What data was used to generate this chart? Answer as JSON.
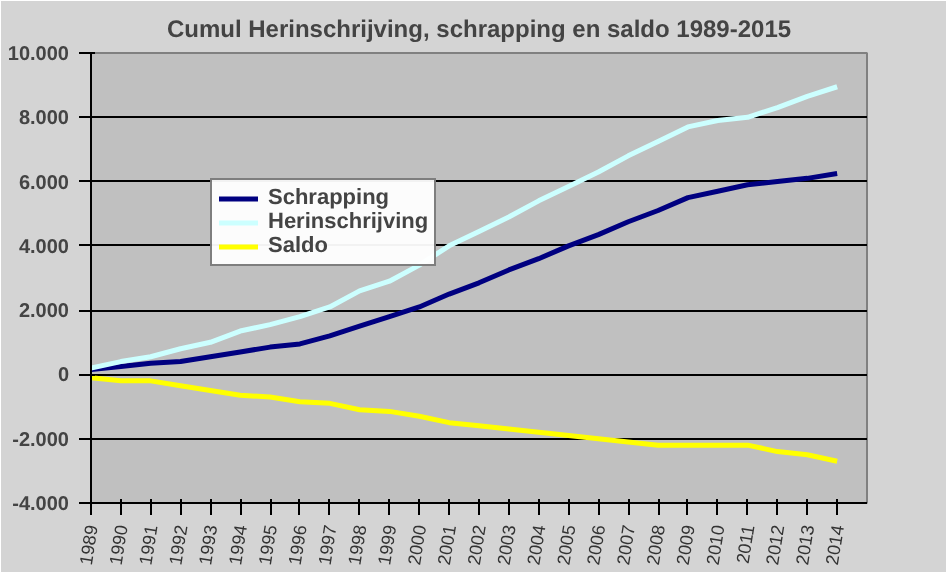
{
  "chart_data": {
    "type": "line",
    "title": "Cumul Herinschrijving, schrapping en saldo 1989-2015",
    "categories": [
      "1989",
      "1990",
      "1991",
      "1992",
      "1993",
      "1994",
      "1995",
      "1996",
      "1997",
      "1998",
      "1999",
      "2000",
      "2001",
      "2002",
      "2003",
      "2004",
      "2005",
      "2006",
      "2007",
      "2008",
      "2009",
      "2010",
      "2011",
      "2012",
      "2013",
      "2014"
    ],
    "series": [
      {
        "name": "Schrapping",
        "color": "#000080",
        "values": [
          150,
          250,
          350,
          400,
          550,
          700,
          850,
          950,
          1200,
          1500,
          1800,
          2100,
          2500,
          2850,
          3250,
          3600,
          4000,
          4350,
          4750,
          5100,
          5500,
          5700,
          5900,
          6000,
          6100,
          6250
        ]
      },
      {
        "name": "Herinschrijving",
        "color": "#ccffff",
        "values": [
          200,
          400,
          550,
          800,
          1000,
          1350,
          1550,
          1800,
          2100,
          2600,
          2900,
          3400,
          4000,
          4450,
          4900,
          5400,
          5850,
          6300,
          6800,
          7250,
          7700,
          7900,
          8000,
          8300,
          8650,
          8950
        ]
      },
      {
        "name": "Saldo",
        "color": "#ffff00",
        "values": [
          -100,
          -200,
          -200,
          -350,
          -500,
          -650,
          -700,
          -850,
          -900,
          -1100,
          -1150,
          -1300,
          -1500,
          -1600,
          -1700,
          -1800,
          -1900,
          -2000,
          -2100,
          -2200,
          -2200,
          -2200,
          -2200,
          -2400,
          -2500,
          -2700
        ]
      }
    ],
    "ylim": [
      -4000,
      10000
    ],
    "yticks": [
      {
        "value": -4000,
        "label": "-4.000"
      },
      {
        "value": -2000,
        "label": "-2.000"
      },
      {
        "value": 0,
        "label": "0"
      },
      {
        "value": 2000,
        "label": "2.000"
      },
      {
        "value": 4000,
        "label": "4.000"
      },
      {
        "value": 6000,
        "label": "6.000"
      },
      {
        "value": 8000,
        "label": "8.000"
      },
      {
        "value": 10000,
        "label": "10.000"
      }
    ],
    "grid": "y",
    "legend": "top left",
    "marker": "none",
    "line_style": "solid"
  }
}
